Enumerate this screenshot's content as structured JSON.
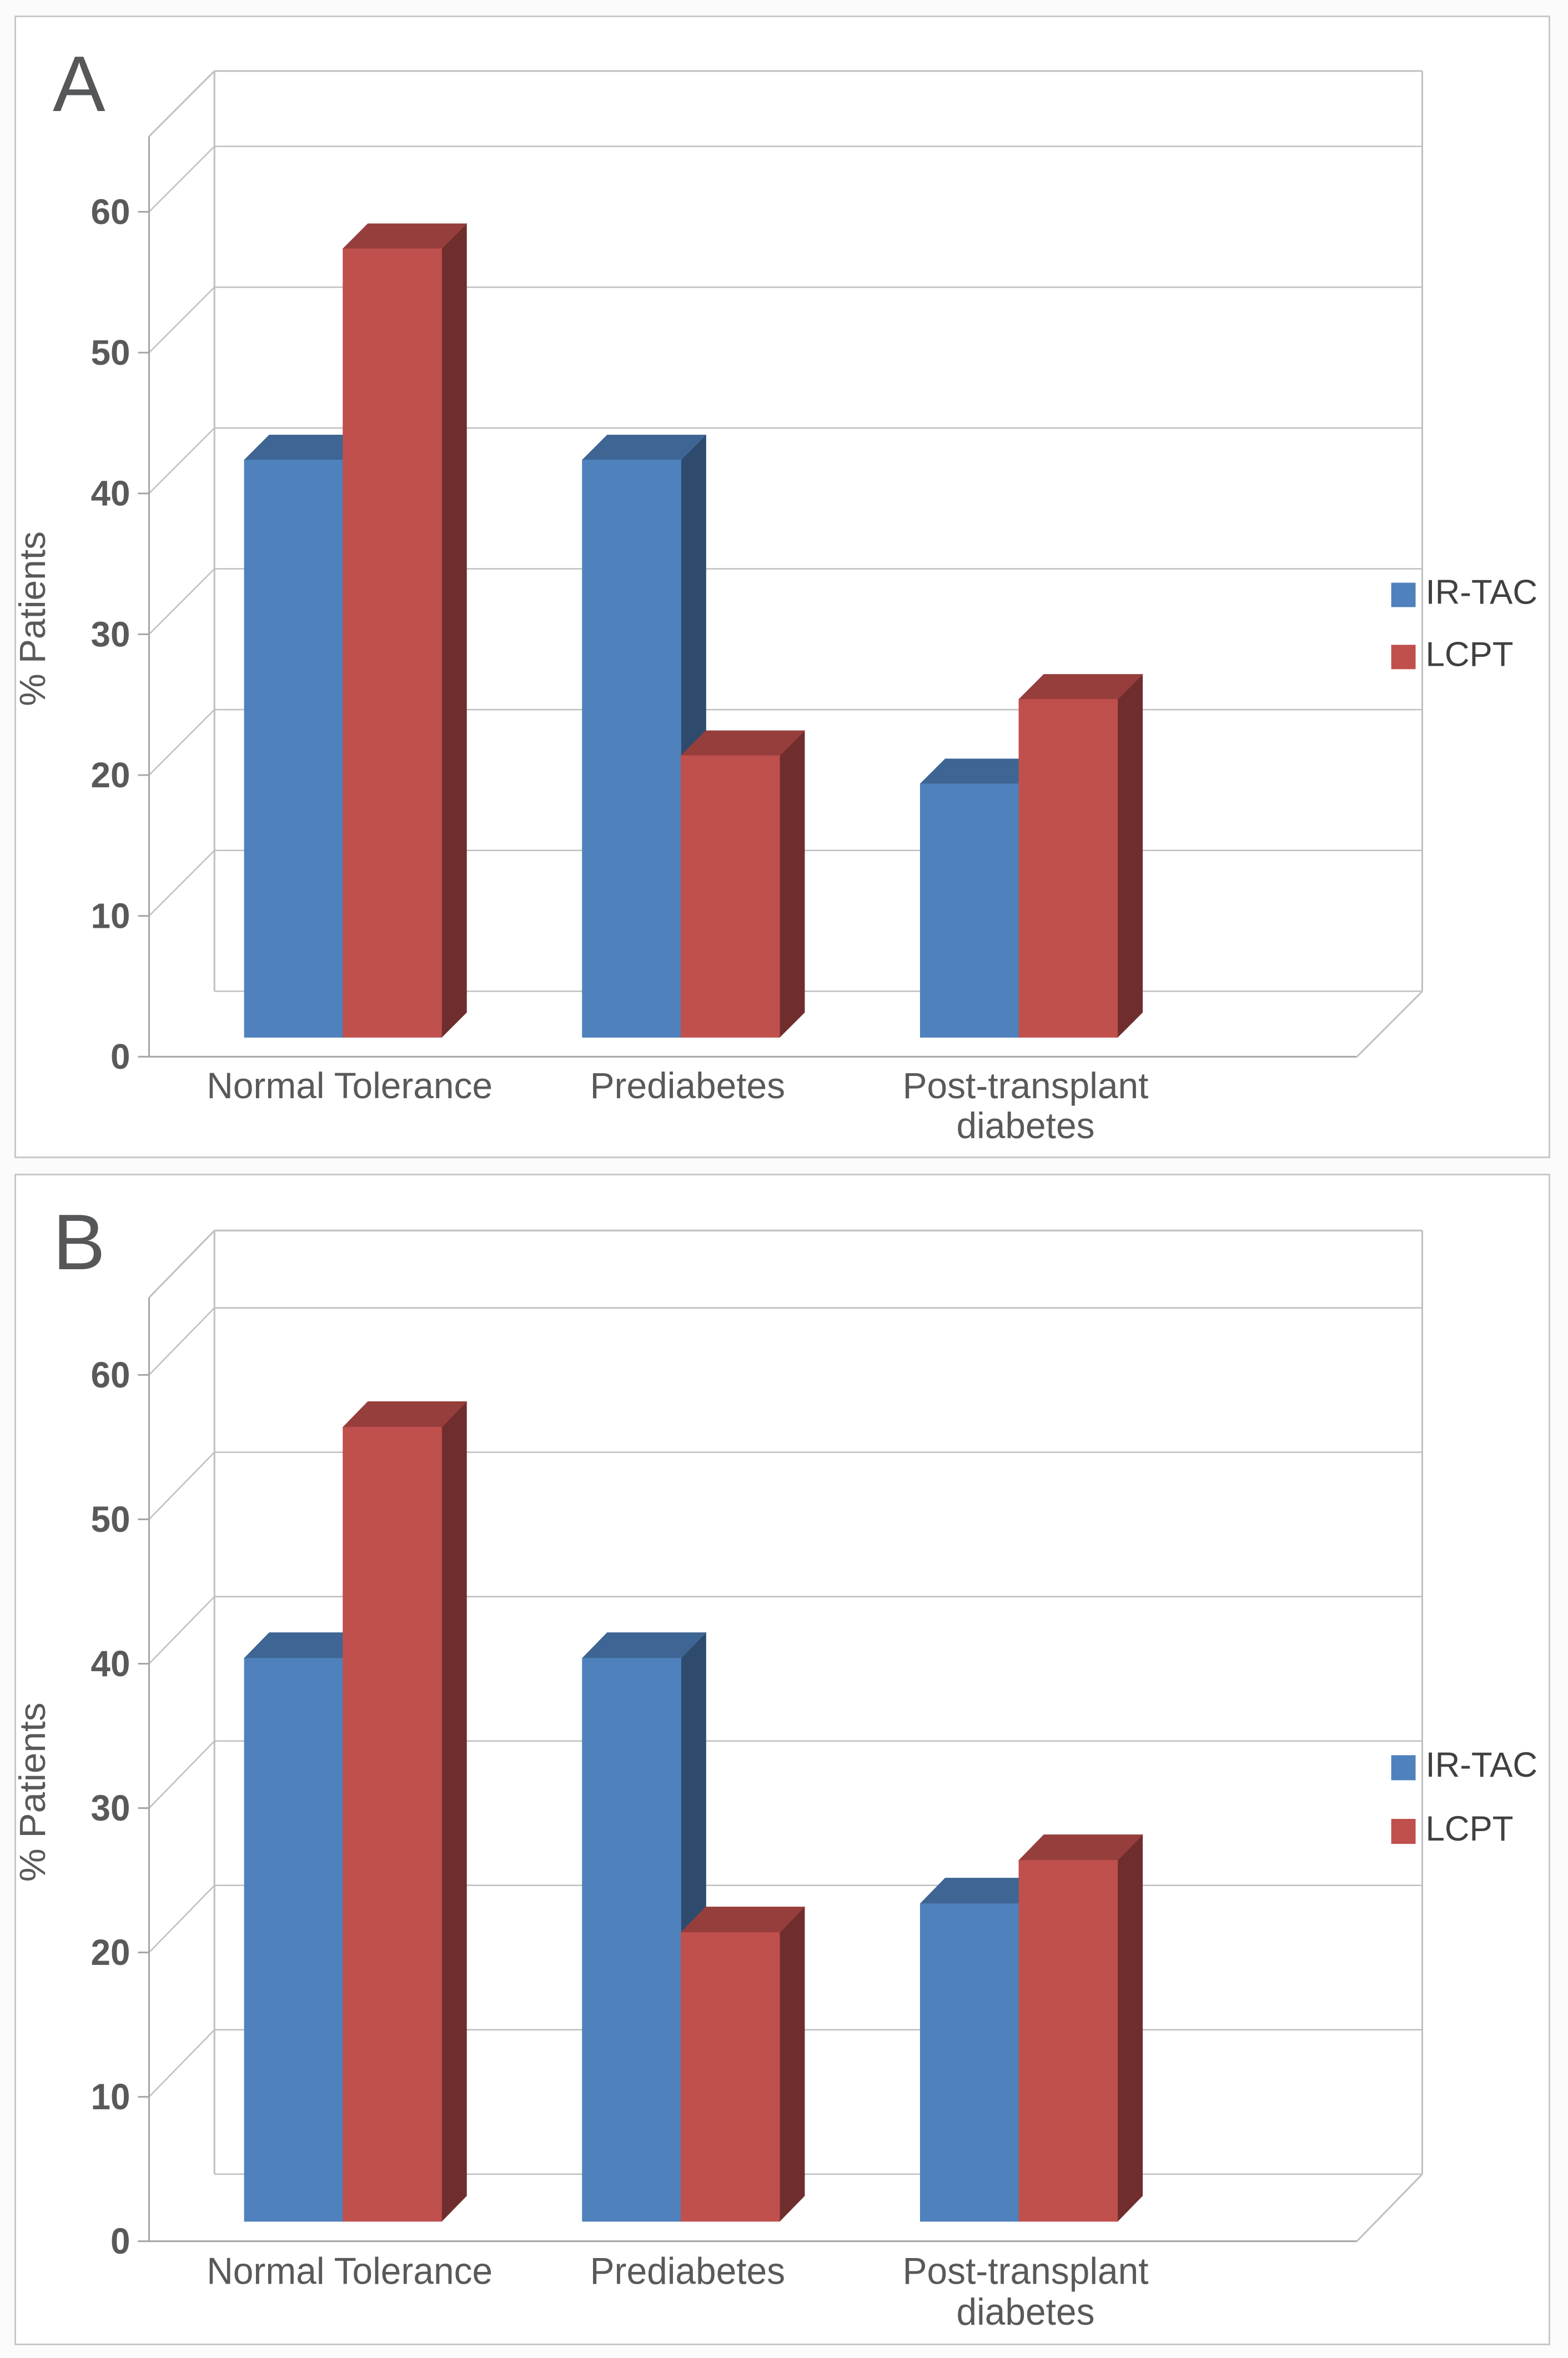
{
  "figure": {
    "background_color": "#ffffff",
    "panel_border_color": "#c8c8c8"
  },
  "style": {
    "gridline_color": "#bfbfbf",
    "axis_line_color": "#a6a6a6",
    "tick_text_color": "#595959",
    "category_text_color": "#595959",
    "legend_text_color": "#404040",
    "ylabel_color": "#595959",
    "panel_letter_color": "#555759"
  },
  "chart_data": [
    {
      "panel": "A",
      "type": "bar",
      "style3d": "3d-clustered-column",
      "categories": [
        "Normal Tolerance",
        "Prediabetes",
        "Post-transplant diabetes"
      ],
      "series": [
        {
          "name": "IR-TAC",
          "color": "#4F81BD",
          "values": [
            41,
            41,
            18
          ]
        },
        {
          "name": "LCPT",
          "color": "#C0504D",
          "values": [
            56,
            20,
            24
          ]
        }
      ],
      "title": "",
      "xlabel": "",
      "ylabel": "% Patients",
      "ylim": [
        0,
        60
      ],
      "yticks": [
        0,
        10,
        20,
        30,
        40,
        50,
        60
      ],
      "grid": true,
      "legend_position": "right"
    },
    {
      "panel": "B",
      "type": "bar",
      "style3d": "3d-clustered-column",
      "categories": [
        "Normal Tolerance",
        "Prediabetes",
        "Post-transplant diabetes"
      ],
      "series": [
        {
          "name": "IR-TAC",
          "color": "#4F81BD",
          "values": [
            39,
            39,
            22
          ]
        },
        {
          "name": "LCPT",
          "color": "#C0504D",
          "values": [
            55,
            20,
            25
          ]
        }
      ],
      "title": "",
      "xlabel": "",
      "ylabel": "% Patients",
      "ylim": [
        0,
        60
      ],
      "yticks": [
        0,
        10,
        20,
        30,
        40,
        50,
        60
      ],
      "grid": true,
      "legend_position": "right"
    }
  ]
}
